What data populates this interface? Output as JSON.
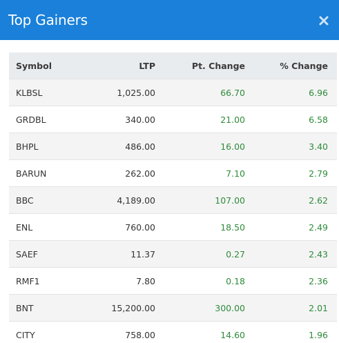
{
  "header": {
    "title": "Top Gainers",
    "close_icon": "close-icon"
  },
  "colors": {
    "header_bg": "#1a80d9",
    "positive": "#2e8b3a",
    "table_header_bg": "#e9ecef"
  },
  "table": {
    "columns": [
      "Symbol",
      "LTP",
      "Pt. Change",
      "% Change"
    ],
    "rows": [
      {
        "symbol": "KLBSL",
        "ltp": "1,025.00",
        "pt_change": "66.70",
        "pct_change": "6.96"
      },
      {
        "symbol": "GRDBL",
        "ltp": "340.00",
        "pt_change": "21.00",
        "pct_change": "6.58"
      },
      {
        "symbol": "BHPL",
        "ltp": "486.00",
        "pt_change": "16.00",
        "pct_change": "3.40"
      },
      {
        "symbol": "BARUN",
        "ltp": "262.00",
        "pt_change": "7.10",
        "pct_change": "2.79"
      },
      {
        "symbol": "BBC",
        "ltp": "4,189.00",
        "pt_change": "107.00",
        "pct_change": "2.62"
      },
      {
        "symbol": "ENL",
        "ltp": "760.00",
        "pt_change": "18.50",
        "pct_change": "2.49"
      },
      {
        "symbol": "SAEF",
        "ltp": "11.37",
        "pt_change": "0.27",
        "pct_change": "2.43"
      },
      {
        "symbol": "RMF1",
        "ltp": "7.80",
        "pt_change": "0.18",
        "pct_change": "2.36"
      },
      {
        "symbol": "BNT",
        "ltp": "15,200.00",
        "pt_change": "300.00",
        "pct_change": "2.01"
      },
      {
        "symbol": "CITY",
        "ltp": "758.00",
        "pt_change": "14.60",
        "pct_change": "1.96"
      }
    ]
  }
}
